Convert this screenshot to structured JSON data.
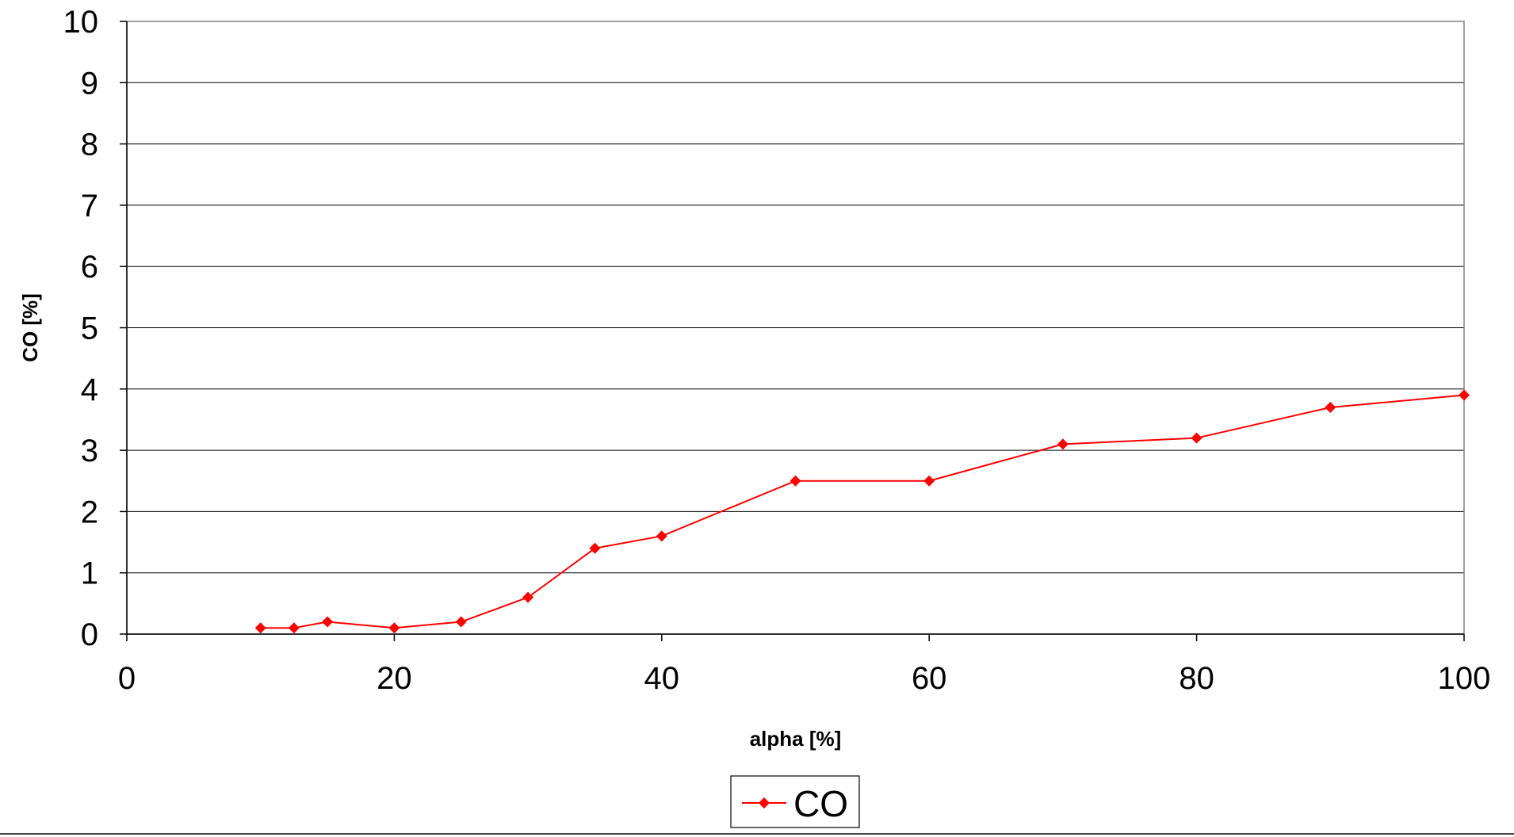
{
  "chart_data": {
    "type": "line",
    "title": "",
    "xlabel": "alpha [%]",
    "ylabel": "CO [%]",
    "xlim": [
      0,
      100
    ],
    "ylim": [
      0,
      10
    ],
    "xticks": [
      0,
      20,
      40,
      60,
      80,
      100
    ],
    "yticks": [
      0,
      1,
      2,
      3,
      4,
      5,
      6,
      7,
      8,
      9,
      10
    ],
    "grid": "horizontal",
    "legend_position": "bottom-center",
    "series": [
      {
        "name": "CO",
        "color": "#ff0000",
        "marker": "diamond",
        "x": [
          10,
          12.5,
          15,
          20,
          25,
          30,
          35,
          40,
          50,
          60,
          70,
          80,
          90,
          100
        ],
        "y": [
          0.1,
          0.1,
          0.2,
          0.1,
          0.2,
          0.6,
          1.4,
          1.6,
          2.5,
          2.5,
          3.1,
          3.2,
          3.7,
          3.9
        ]
      }
    ]
  }
}
